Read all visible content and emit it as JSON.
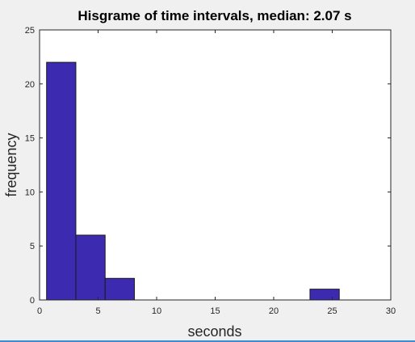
{
  "chart_data": {
    "type": "bar",
    "title": "Hisgrame of time intervals, median: 2.07 s",
    "xlabel": "seconds",
    "ylabel": "frequency",
    "xlim": [
      0,
      30
    ],
    "ylim": [
      0,
      25
    ],
    "xticks": [
      0,
      5,
      10,
      15,
      20,
      25,
      30
    ],
    "yticks": [
      0,
      5,
      10,
      15,
      20,
      25
    ],
    "bin_edges": [
      0.6,
      3.1,
      5.6,
      8.1,
      10.6,
      13.1,
      15.6,
      18.1,
      20.6,
      23.1,
      25.6
    ],
    "values": [
      22,
      6,
      2,
      0,
      0,
      0,
      0,
      0,
      0,
      1
    ],
    "grid": false,
    "bar_color": "#3c2bb0",
    "bar_edge_color": "#1a1a1a"
  }
}
